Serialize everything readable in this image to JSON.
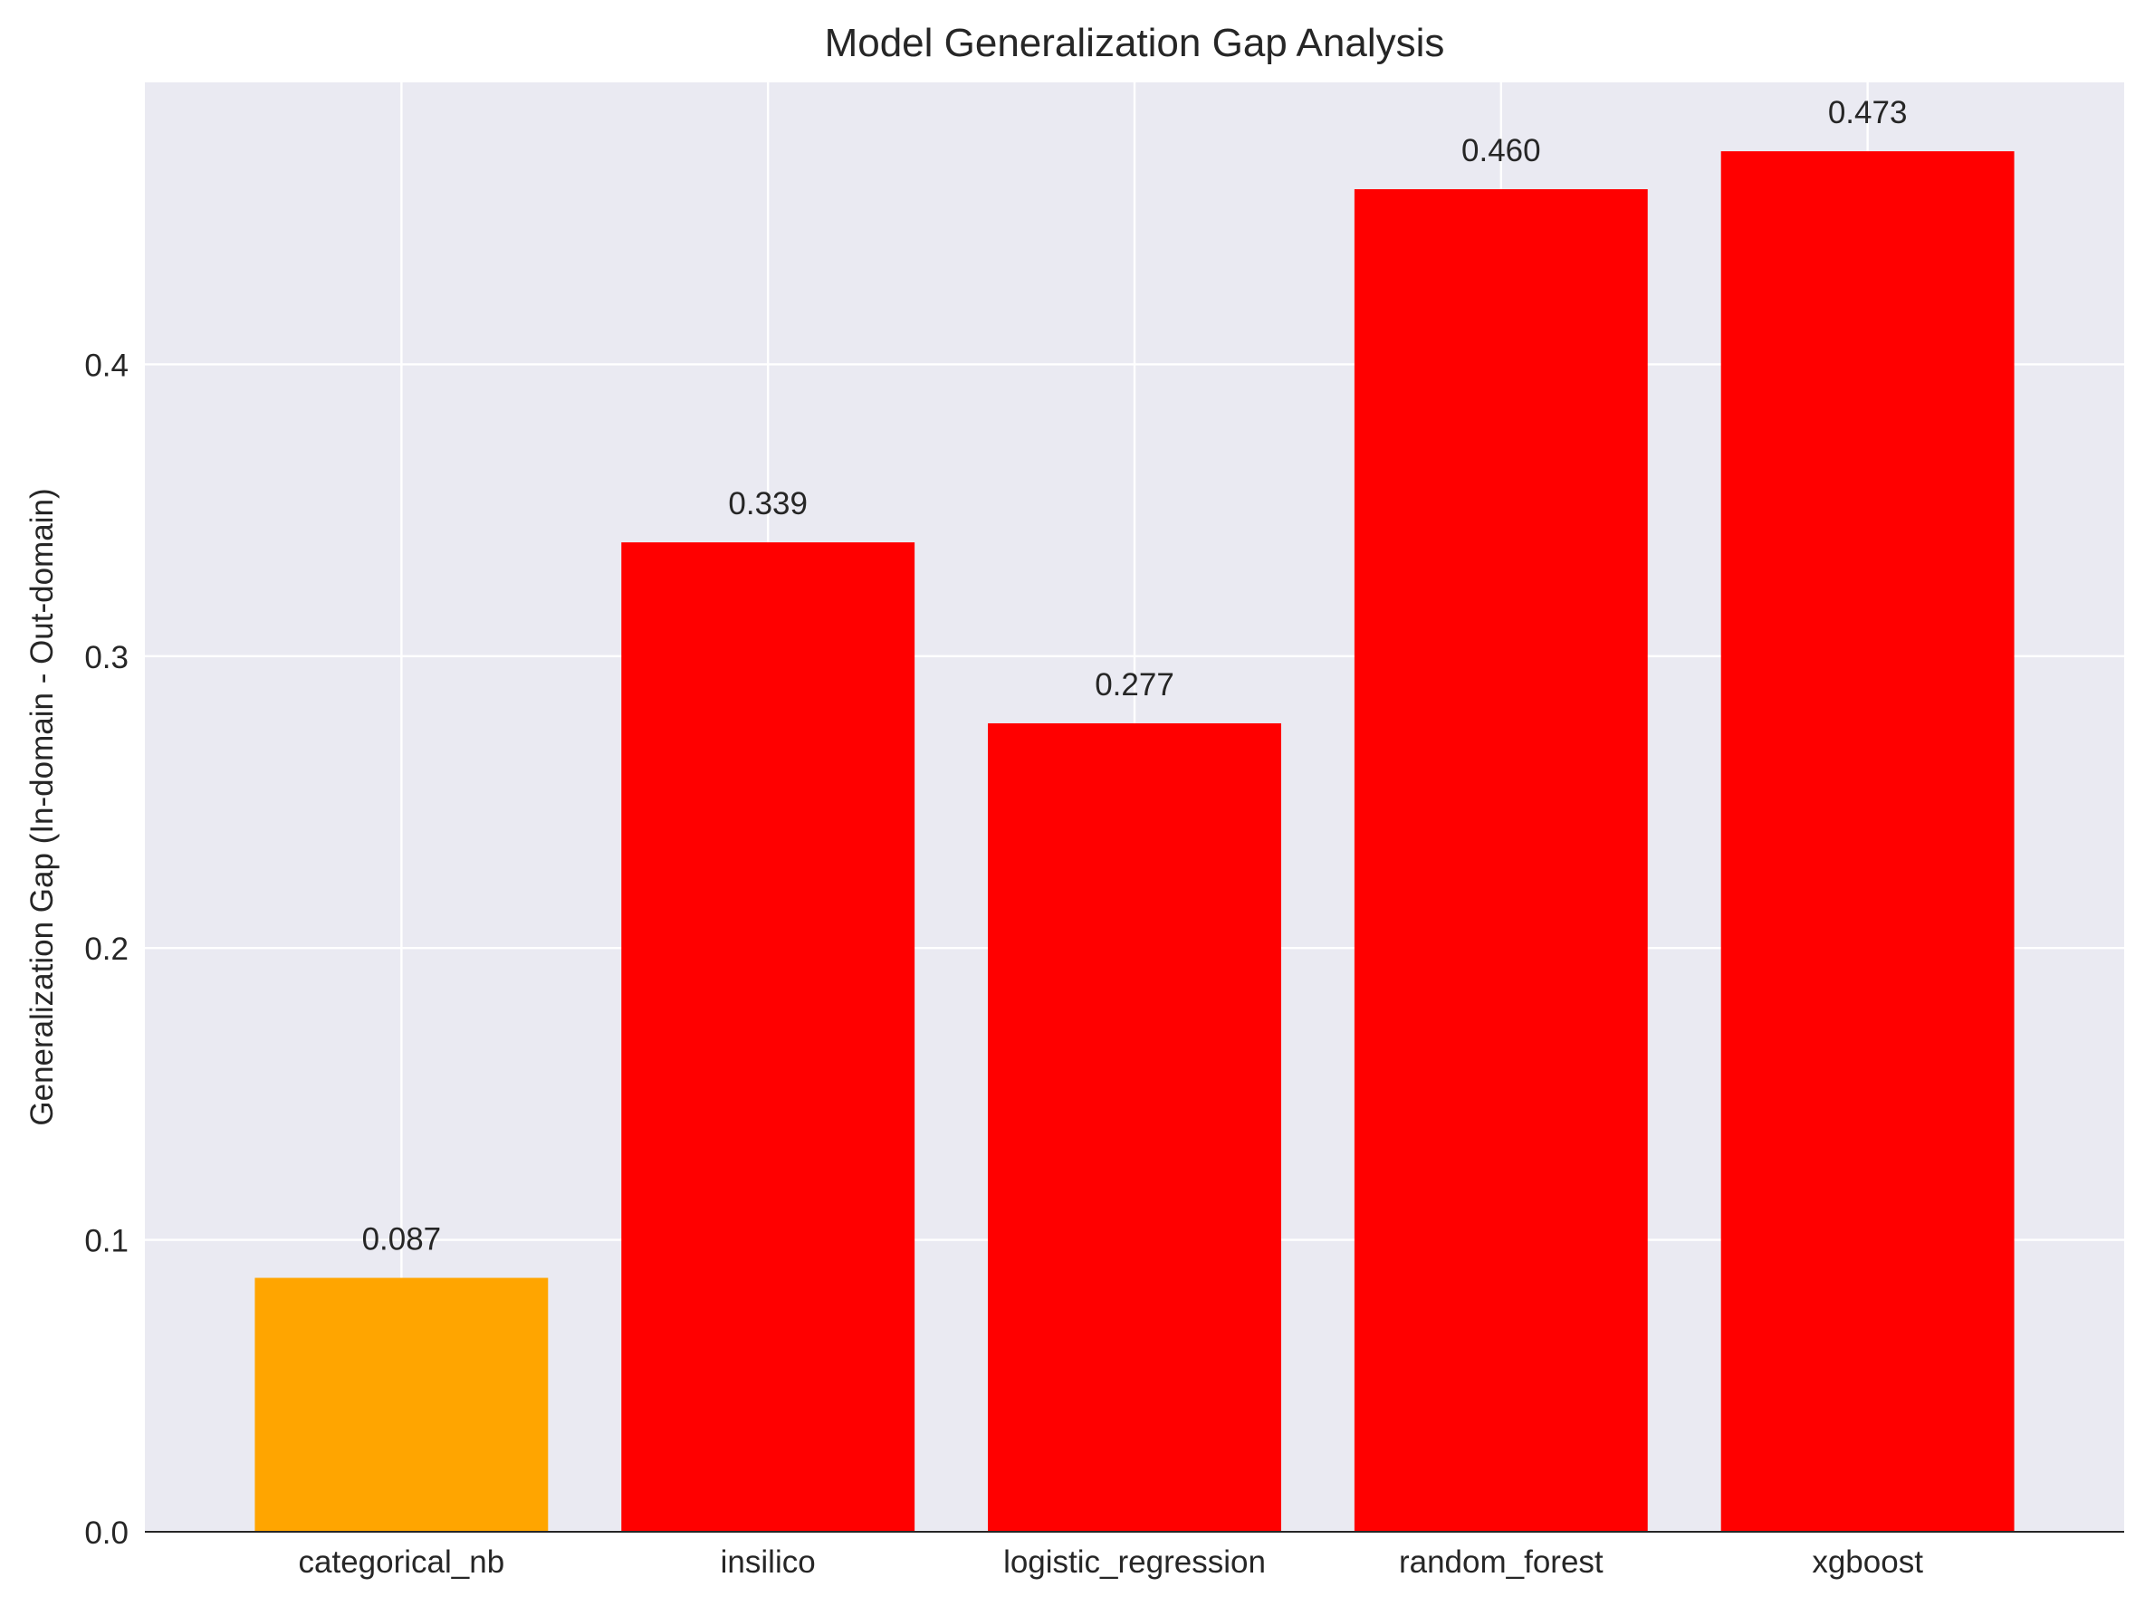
{
  "chart_data": {
    "type": "bar",
    "title": "Model Generalization Gap Analysis",
    "xlabel": "",
    "ylabel": "Generalization Gap (In-domain - Out-domain)",
    "categories": [
      "categorical_nb",
      "insilico",
      "logistic_regression",
      "random_forest",
      "xgboost"
    ],
    "values": [
      0.087,
      0.339,
      0.277,
      0.46,
      0.473
    ],
    "value_labels": [
      "0.087",
      "0.339",
      "0.277",
      "0.460",
      "0.473"
    ],
    "bar_colors": [
      "#FFA500",
      "#FF0000",
      "#FF0000",
      "#FF0000",
      "#FF0000"
    ],
    "ylim": [
      0,
      0.4966
    ],
    "yticks": [
      0.0,
      0.1,
      0.2,
      0.3,
      0.4
    ],
    "ytick_labels": [
      "0.0",
      "0.1",
      "0.2",
      "0.3",
      "0.4"
    ],
    "grid": true,
    "colors": {
      "plot_background": "#EAEAF2",
      "grid": "#FFFFFF",
      "text": "#262626",
      "axis_line": "#262626"
    }
  }
}
